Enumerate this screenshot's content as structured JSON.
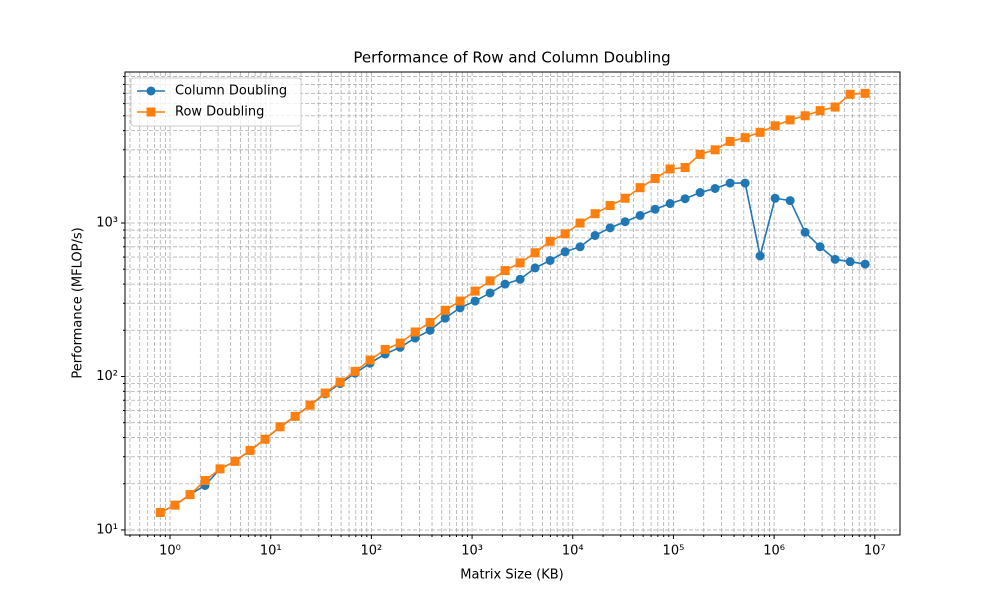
{
  "chart_data": {
    "type": "line",
    "title": "Performance of Row and Column Doubling",
    "xlabel": "Matrix Size (KB)",
    "ylabel": "Performance (MFLOP/s)",
    "xscale": "log",
    "yscale": "log",
    "grid": true,
    "legend": "upper left",
    "xlim": [
      0.357,
      17800000
    ],
    "ylim": [
      9.27,
      9640
    ],
    "xticks": [
      {
        "value": 1,
        "label": "10⁰"
      },
      {
        "value": 10,
        "label": "10¹"
      },
      {
        "value": 100,
        "label": "10²"
      },
      {
        "value": 1000,
        "label": "10³"
      },
      {
        "value": 10000,
        "label": "10⁴"
      },
      {
        "value": 100000,
        "label": "10⁵"
      },
      {
        "value": 1000000,
        "label": "10⁶"
      },
      {
        "value": 10000000,
        "label": "10⁷"
      }
    ],
    "yticks": [
      {
        "value": 10,
        "label": "10¹"
      },
      {
        "value": 100,
        "label": "10²"
      },
      {
        "value": 1000,
        "label": "10³"
      }
    ],
    "x": [
      0.8,
      1.12,
      1.58,
      2.23,
      3.14,
      4.43,
      6.24,
      8.79,
      12.4,
      17.5,
      24.6,
      34.7,
      48.9,
      68.9,
      97.0,
      137,
      193,
      272,
      383,
      540,
      760,
      1072,
      1510,
      2128,
      3000,
      4227,
      5957,
      8395,
      11830,
      16670,
      23500,
      33110,
      46670,
      65770,
      92680,
      130600,
      184100,
      259400,
      365600,
      515200,
      726100,
      1023000,
      1442000,
      2032000,
      2864000,
      4036000,
      5689000,
      8017000
    ],
    "series": [
      {
        "name": "Column Doubling",
        "color": "#1f77b4",
        "marker": "circle",
        "values": [
          13,
          14.5,
          17,
          19.5,
          25,
          28,
          33,
          39,
          47,
          55,
          65,
          77,
          90,
          105,
          122,
          140,
          155,
          178,
          200,
          240,
          280,
          310,
          350,
          400,
          430,
          510,
          570,
          650,
          700,
          830,
          930,
          1020,
          1120,
          1230,
          1340,
          1440,
          1580,
          1680,
          1820,
          1820,
          610,
          1450,
          1400,
          870,
          700,
          580,
          560,
          540
        ]
      },
      {
        "name": "Row Doubling",
        "color": "#ff7f0e",
        "marker": "square",
        "values": [
          13,
          14.5,
          17,
          21,
          25,
          28,
          33,
          39,
          47,
          55,
          65,
          78,
          92,
          108,
          128,
          150,
          165,
          195,
          225,
          270,
          310,
          360,
          420,
          490,
          550,
          640,
          760,
          850,
          1000,
          1150,
          1300,
          1450,
          1700,
          1950,
          2250,
          2300,
          2800,
          3000,
          3400,
          3600,
          3900,
          4300,
          4700,
          5000,
          5400,
          5700,
          6900,
          7000
        ]
      }
    ]
  }
}
